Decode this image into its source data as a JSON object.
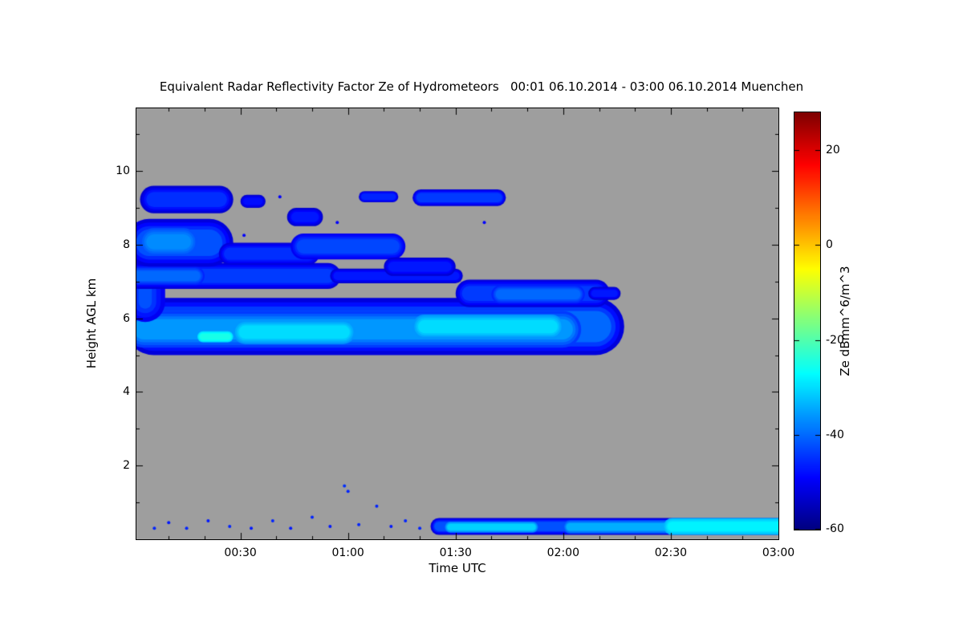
{
  "chart_data": {
    "type": "heatmap",
    "title": "Equivalent Radar Reflectivity Factor Ze of Hydrometeors   00:01 06.10.2014 - 03:00 06.10.2014 Muenchen",
    "station": "Muenchen",
    "time_range": "00:01 06.10.2014 - 03:00 06.10.2014",
    "xlabel": "Time UTC",
    "ylabel": "Height AGL km",
    "x_start_minutes": 1,
    "x_end_minutes": 180,
    "x_ticks": [
      {
        "t": 30,
        "label": "00:30"
      },
      {
        "t": 60,
        "label": "01:00"
      },
      {
        "t": 90,
        "label": "01:30"
      },
      {
        "t": 120,
        "label": "02:00"
      },
      {
        "t": 150,
        "label": "02:30"
      },
      {
        "t": 180,
        "label": "03:00"
      }
    ],
    "ylim_km": [
      0,
      11.7
    ],
    "y_ticks": [
      {
        "km": 2,
        "label": "2"
      },
      {
        "km": 4,
        "label": "4"
      },
      {
        "km": 6,
        "label": "6"
      },
      {
        "km": 8,
        "label": "8"
      },
      {
        "km": 10,
        "label": "10"
      }
    ],
    "no_data_color": "#9e9e9e",
    "colorbar": {
      "label": "Ze dBmm^6/m^3",
      "vmin": -60,
      "vmax": 28,
      "colormap": "jet",
      "ticks": [
        {
          "v": 20,
          "label": "20"
        },
        {
          "v": 0,
          "label": "0"
        },
        {
          "v": -20,
          "label": "-20"
        },
        {
          "v": -40,
          "label": "-40"
        },
        {
          "v": -60,
          "label": "-60"
        }
      ]
    },
    "features_format": "[t_start_min, t_end_min, h_bottom_km, h_top_km, ze_core_dB, ze_edge_dB]",
    "features": [
      [
        1,
        137,
        5.0,
        6.55,
        -40,
        -52
      ],
      [
        1,
        125,
        5.2,
        6.2,
        -36,
        -44
      ],
      [
        28,
        62,
        5.3,
        5.95,
        -30,
        -36
      ],
      [
        78,
        120,
        5.45,
        6.1,
        -30,
        -36
      ],
      [
        18,
        28,
        5.35,
        5.65,
        -25,
        -30
      ],
      [
        1,
        9,
        5.9,
        7.5,
        -42,
        -50
      ],
      [
        90,
        133,
        6.3,
        7.05,
        -44,
        -52
      ],
      [
        100,
        126,
        6.4,
        6.9,
        -40,
        -46
      ],
      [
        127,
        136,
        6.5,
        6.85,
        -47,
        -53
      ],
      [
        1,
        58,
        6.8,
        7.5,
        -44,
        -52
      ],
      [
        1,
        20,
        6.9,
        7.4,
        -40,
        -46
      ],
      [
        55,
        92,
        6.95,
        7.35,
        -47,
        -53
      ],
      [
        1,
        28,
        7.4,
        8.7,
        -42,
        -52
      ],
      [
        2,
        18,
        7.7,
        8.45,
        -37,
        -42
      ],
      [
        24,
        52,
        7.45,
        8.05,
        -45,
        -52
      ],
      [
        44,
        76,
        7.6,
        8.3,
        -43,
        -50
      ],
      [
        70,
        90,
        7.15,
        7.65,
        -47,
        -53
      ],
      [
        2,
        28,
        8.85,
        9.6,
        -45,
        -53
      ],
      [
        30,
        37,
        9.0,
        9.35,
        -48,
        -53
      ],
      [
        43,
        53,
        8.5,
        9.0,
        -47,
        -53
      ],
      [
        63,
        74,
        9.15,
        9.45,
        -46,
        -52
      ],
      [
        78,
        104,
        9.05,
        9.5,
        -44,
        -52
      ],
      [
        83,
        180,
        0.12,
        0.58,
        -42,
        -52
      ],
      [
        87,
        113,
        0.18,
        0.48,
        -31,
        -38
      ],
      [
        120,
        180,
        0.15,
        0.52,
        -34,
        -42
      ],
      [
        148,
        180,
        0.12,
        0.58,
        -28,
        -33
      ]
    ],
    "specks_format": "[t_min, h_km, ze_dB]",
    "specks": [
      [
        6,
        0.3,
        -46
      ],
      [
        10,
        0.45,
        -47
      ],
      [
        15,
        0.3,
        -46
      ],
      [
        21,
        0.5,
        -47
      ],
      [
        27,
        0.35,
        -46
      ],
      [
        33,
        0.3,
        -47
      ],
      [
        39,
        0.5,
        -46
      ],
      [
        44,
        0.3,
        -47
      ],
      [
        50,
        0.6,
        -46
      ],
      [
        55,
        0.35,
        -47
      ],
      [
        59,
        1.45,
        -45
      ],
      [
        60,
        1.3,
        -46
      ],
      [
        63,
        0.4,
        -46
      ],
      [
        68,
        0.9,
        -46
      ],
      [
        72,
        0.35,
        -47
      ],
      [
        76,
        0.5,
        -46
      ],
      [
        80,
        0.3,
        -46
      ],
      [
        31,
        8.25,
        -49
      ],
      [
        57,
        8.6,
        -49
      ],
      [
        41,
        9.3,
        -49
      ],
      [
        98,
        8.6,
        -49
      ]
    ]
  }
}
